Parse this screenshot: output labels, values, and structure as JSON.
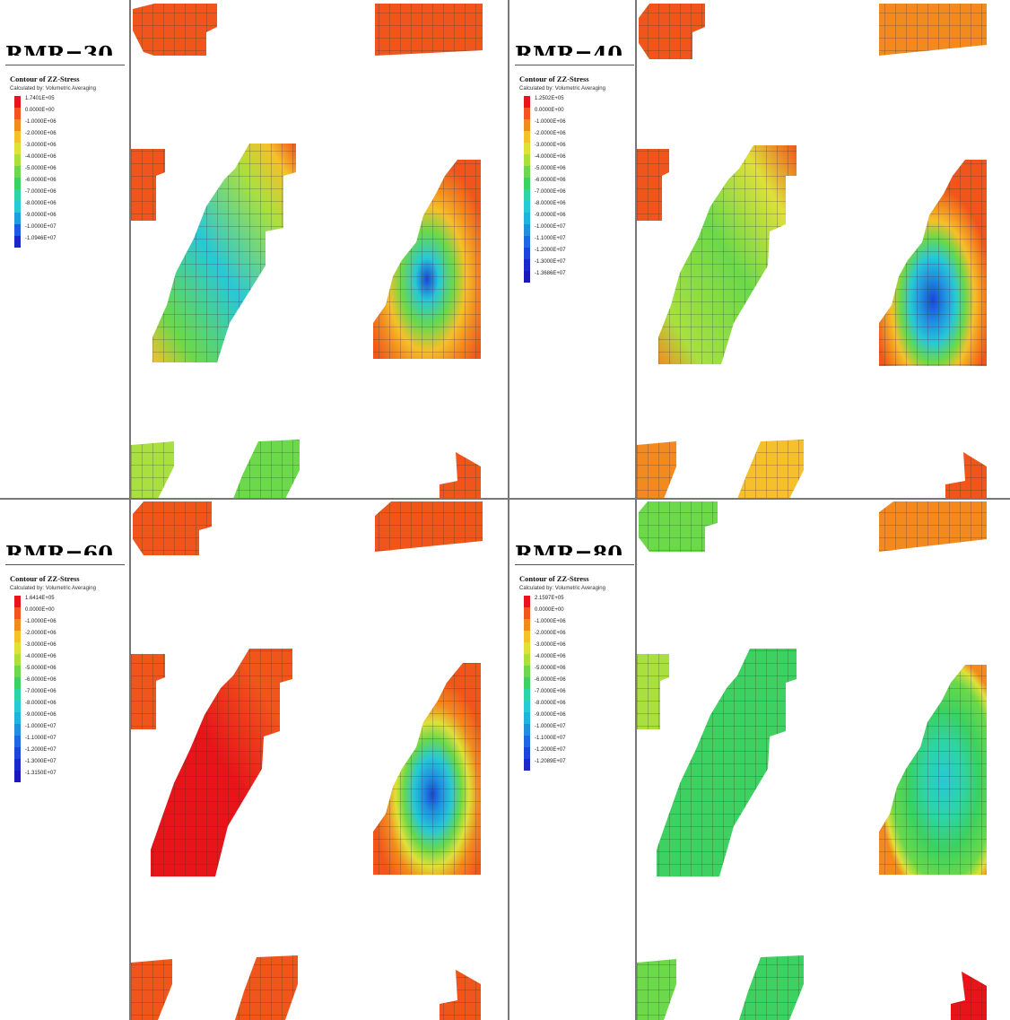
{
  "panels": [
    {
      "title": "RMR=30",
      "legend_title": "Contour of ZZ-Stress",
      "legend_subtitle": "Calculated by: Volumetric Averaging",
      "legend_values": [
        "1.7401E+05",
        "0.0000E+00",
        "-1.0000E+06",
        "-2.0000E+06",
        "-3.0000E+06",
        "-4.0000E+06",
        "-5.0000E+06",
        "-6.0000E+06",
        "-7.0000E+06",
        "-8.0000E+06",
        "-9.0000E+06",
        "-1.0000E+07",
        "-1.0946E+07"
      ],
      "legend_colors": [
        "#e8141a",
        "#f0561c",
        "#f38a1f",
        "#f5c02b",
        "#dfe03a",
        "#a9e03f",
        "#6bd94a",
        "#3cd160",
        "#2ed4a7",
        "#28c8d6",
        "#1f9de0",
        "#1b5ce0",
        "#1a28c8"
      ]
    },
    {
      "title": "RMR=40",
      "legend_title": "Contour of ZZ-Stress",
      "legend_subtitle": "Calculated by: Volumetric Averaging",
      "legend_values": [
        "1.2502E+05",
        "0.0000E+00",
        "-1.0000E+06",
        "-2.0000E+06",
        "-3.0000E+06",
        "-4.0000E+06",
        "-5.0000E+06",
        "-6.0000E+06",
        "-7.0000E+06",
        "-8.0000E+06",
        "-9.0000E+06",
        "-1.0000E+07",
        "-1.1000E+07",
        "-1.2000E+07",
        "-1.3000E+07",
        "-1.3686E+07"
      ],
      "legend_colors": [
        "#e8141a",
        "#f0561c",
        "#f38a1f",
        "#f5c02b",
        "#dfe03a",
        "#a9e03f",
        "#6bd94a",
        "#3cd160",
        "#2ed4a7",
        "#28c8d6",
        "#23b2e0",
        "#1f8fe0",
        "#1b6ae0",
        "#1b46d8",
        "#1a2ac8",
        "#1a1ab8"
      ]
    },
    {
      "title": "RMR=60",
      "legend_title": "Contour of ZZ-Stress",
      "legend_subtitle": "Calculated by: Volumetric Averaging",
      "legend_values": [
        "1.6414E+05",
        "0.0000E+00",
        "-1.0000E+06",
        "-2.0000E+06",
        "-3.0000E+06",
        "-4.0000E+06",
        "-5.0000E+06",
        "-6.0000E+06",
        "-7.0000E+06",
        "-8.0000E+06",
        "-9.0000E+06",
        "-1.0000E+07",
        "-1.1000E+07",
        "-1.2000E+07",
        "-1.3000E+07",
        "-1.3150E+07"
      ],
      "legend_colors": [
        "#e8141a",
        "#f0561c",
        "#f38a1f",
        "#f5c02b",
        "#dfe03a",
        "#a9e03f",
        "#6bd94a",
        "#3cd160",
        "#2ed4a7",
        "#28c8d6",
        "#23b2e0",
        "#1f8fe0",
        "#1b6ae0",
        "#1b46d8",
        "#1a2ac8",
        "#1a1ab8"
      ]
    },
    {
      "title": "RMR=80",
      "legend_title": "Contour of ZZ-Stress",
      "legend_subtitle": "Calculated by: Volumetric Averaging",
      "legend_values": [
        "2.1597E+05",
        "0.0000E+00",
        "-1.0000E+06",
        "-2.0000E+06",
        "-3.0000E+06",
        "-4.0000E+06",
        "-5.0000E+06",
        "-6.0000E+06",
        "-7.0000E+06",
        "-8.0000E+06",
        "-9.0000E+06",
        "-1.0000E+07",
        "-1.1000E+07",
        "-1.2000E+07",
        "-1.2089E+07"
      ],
      "legend_colors": [
        "#e8141a",
        "#f0561c",
        "#f38a1f",
        "#f5c02b",
        "#dfe03a",
        "#a9e03f",
        "#6bd94a",
        "#3cd160",
        "#2ed4a7",
        "#28c8d6",
        "#23b2e0",
        "#1f8fe0",
        "#1b6ae0",
        "#1b46d8",
        "#1a2ac8"
      ]
    }
  ],
  "colors": {
    "background": "#ffffff",
    "frame": "#777777",
    "red": "#e8141a",
    "orange": "#f0561c",
    "yellow": "#f5c02b",
    "green": "#3cd160",
    "cyan": "#28c8d6",
    "blue": "#1b46d8"
  }
}
